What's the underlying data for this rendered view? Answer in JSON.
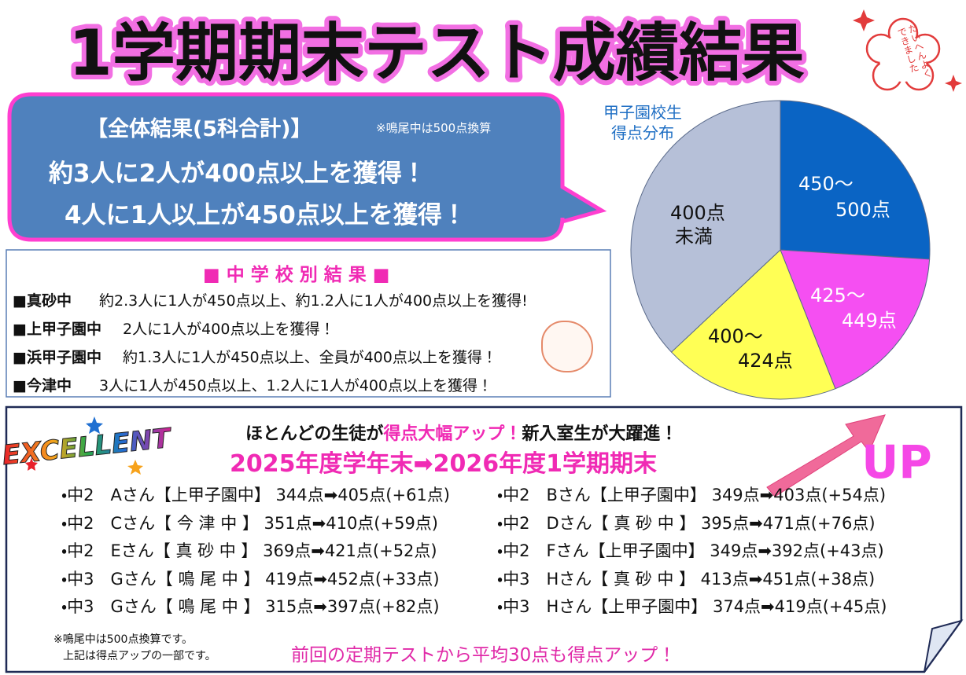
{
  "title": "1学期期末テスト成績結果",
  "stamp": "たいへんよくできました",
  "overall": {
    "heading": "【全体結果(5科合計)】",
    "note": "※鳴尾中は500点換算",
    "lines": [
      "約3人に2人が400点以上を獲得！",
      "4人に1人以上が450点以上を獲得！"
    ]
  },
  "schools": {
    "heading": "■ 中 学 校 別 結 果 ■",
    "rows": [
      {
        "name": "■真砂中",
        "text": "約2.3人に1人が450点以上、約1.2人に1人が400点以上を獲得!"
      },
      {
        "name": "■上甲子園中",
        "text": "2人に1人が400点以上を獲得！"
      },
      {
        "name": "■浜甲子園中",
        "text": "約1.3人に1人が450点以上、全員が400点以上を獲得！"
      },
      {
        "name": "■今津中",
        "text": "3人に1人が450点以上、1.2人に1人が400点以上を獲得！"
      }
    ]
  },
  "chart_data": {
    "type": "pie",
    "title": "甲子園校生得点分布",
    "categories": [
      [
        "450〜",
        "500点"
      ],
      [
        "425〜",
        "449点"
      ],
      [
        "400〜",
        "424点"
      ],
      [
        "400点",
        "未満"
      ]
    ],
    "values": [
      26,
      18,
      19,
      37
    ],
    "colors": [
      "#0a64c4",
      "#f54ff2",
      "#ffff55",
      "#b6c0d8"
    ]
  },
  "improvement": {
    "excellent": "EXCELLENT",
    "headline": [
      "ほとんどの生徒が",
      "得点大幅アップ！",
      "新入室生が大躍進！"
    ],
    "period": "2025年度学年末➡2026年度1学期期末",
    "up": "UP",
    "left": [
      "・中2　Aさん【上甲子園中】 344点➡405点(+61点)",
      "・中2　Cさん【 今 津 中 】 351点➡410点(+59点)",
      "・中2　Eさん【 真 砂 中 】 369点➡421点(+52点)",
      "・中3　Gさん【 鳴 尾 中 】 419点➡452点(+33点)",
      "・中3　Gさん【 鳴 尾 中 】 315点➡397点(+82点)"
    ],
    "right": [
      "・中2　Bさん【上甲子園中】 349点➡403点(+54点)",
      "・中2　Dさん【 真 砂 中 】 395点➡471点(+76点)",
      "・中2　Fさん【上甲子園中】 349点➡392点(+43点)",
      "・中3　Hさん【 真 砂 中 】 413点➡451点(+38点)",
      "・中3　Hさん【上甲子園中】 374点➡419点(+45点)"
    ],
    "notes": [
      "※鳴尾中は500点換算です。",
      "上記は得点アップの一部です。"
    ],
    "summary": "前回の定期テストから平均30点も得点アップ！"
  }
}
